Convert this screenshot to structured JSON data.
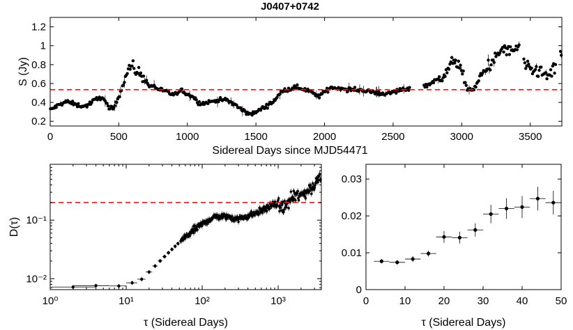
{
  "figure_title": "J0407+0742",
  "colors": {
    "data": "#000000",
    "reference_line": "#e8161c",
    "axis": "#000000"
  },
  "chart_data": [
    {
      "id": "lightcurve",
      "type": "scatter",
      "title": "J0407+0742",
      "xlabel": "Sidereal Days since MJD54471",
      "ylabel": "S (Jy)",
      "xlim": [
        0,
        3730
      ],
      "ylim": [
        0.15,
        1.3
      ],
      "xticks": [
        0,
        500,
        1000,
        1500,
        2000,
        2500,
        3000,
        3500
      ],
      "yticks": [
        0.2,
        0.4,
        0.6,
        0.8,
        1.0,
        1.2
      ],
      "ytick_labels": [
        "0.2",
        "0.4",
        "0.6",
        "0.8",
        "1",
        "1.2"
      ],
      "reference_line": {
        "y": 0.535,
        "style": "dashed"
      },
      "trend_knots_x": [
        0,
        60,
        120,
        200,
        260,
        320,
        380,
        430,
        460,
        500,
        540,
        575,
        600,
        640,
        680,
        720,
        780,
        900,
        960,
        1000,
        1050,
        1100,
        1200,
        1280,
        1350,
        1420,
        1480,
        1550,
        1620,
        1700,
        1800,
        1880,
        1950,
        2000,
        2050,
        2150,
        2250,
        2350,
        2420,
        2480,
        2550,
        2620,
        2720,
        2800,
        2880,
        2940,
        2980,
        3040,
        3090,
        3140,
        3200,
        3260,
        3300,
        3360,
        3420,
        3460,
        3500,
        3560,
        3620,
        3680,
        3730
      ],
      "trend_knots_y": [
        0.32,
        0.37,
        0.41,
        0.37,
        0.36,
        0.42,
        0.46,
        0.34,
        0.33,
        0.46,
        0.62,
        0.78,
        0.77,
        0.72,
        0.67,
        0.58,
        0.55,
        0.48,
        0.52,
        0.49,
        0.45,
        0.38,
        0.42,
        0.43,
        0.37,
        0.3,
        0.28,
        0.34,
        0.4,
        0.53,
        0.56,
        0.53,
        0.46,
        0.51,
        0.56,
        0.54,
        0.53,
        0.51,
        0.49,
        0.5,
        0.53,
        0.55,
        0.57,
        0.62,
        0.7,
        0.85,
        0.78,
        0.55,
        0.53,
        0.68,
        0.8,
        0.88,
        0.98,
        0.93,
        0.98,
        0.78,
        0.74,
        0.72,
        0.68,
        0.74,
        0.94
      ],
      "gaps": [
        [
          2620,
          2720
        ],
        [
          3420,
          3450
        ],
        [
          3690,
          3725
        ]
      ],
      "isolated_points": [
        [
          3720,
          0.94
        ]
      ]
    },
    {
      "id": "structure_function_log",
      "type": "scatter",
      "xscale": "log",
      "yscale": "log",
      "xlabel": "τ (Sidereal Days)",
      "ylabel": "D(τ)",
      "xlim": [
        1,
        3700
      ],
      "ylim": [
        0.0065,
        0.9
      ],
      "xticks": [
        1,
        10,
        100,
        1000
      ],
      "xtick_labels": [
        "10⁰",
        "10¹",
        "10²",
        "10³"
      ],
      "yticks": [
        0.01,
        0.1
      ],
      "ytick_labels": [
        "10⁻²",
        "10⁻¹"
      ],
      "reference_line": {
        "y": 0.2,
        "style": "dashed"
      },
      "trend_knots_tau": [
        2,
        4,
        8,
        12,
        16,
        20,
        30,
        50,
        80,
        120,
        150,
        200,
        300,
        500,
        700,
        900,
        1200,
        1600,
        2000,
        2500,
        3000,
        3500
      ],
      "trend_knots_D": [
        0.0072,
        0.0076,
        0.0075,
        0.0085,
        0.0098,
        0.013,
        0.022,
        0.042,
        0.07,
        0.1,
        0.115,
        0.115,
        0.105,
        0.13,
        0.16,
        0.19,
        0.165,
        0.26,
        0.26,
        0.33,
        0.38,
        0.6
      ]
    },
    {
      "id": "structure_function_zoom",
      "type": "scatter",
      "xlabel": "τ (Sidereal Days)",
      "ylabel": "",
      "xlim": [
        0,
        50
      ],
      "ylim": [
        0,
        0.034
      ],
      "xticks": [
        0,
        10,
        20,
        30,
        40,
        50
      ],
      "yticks": [
        0,
        0.01,
        0.02,
        0.03
      ],
      "ytick_labels": [
        "0",
        "0.01",
        "0.02",
        "0.03"
      ],
      "points": [
        {
          "x": 4,
          "y": 0.0077,
          "xerr": 2,
          "yerr": 0.0006
        },
        {
          "x": 8,
          "y": 0.0074,
          "xerr": 2,
          "yerr": 0.0006
        },
        {
          "x": 12,
          "y": 0.0083,
          "xerr": 2,
          "yerr": 0.0008
        },
        {
          "x": 16,
          "y": 0.0098,
          "xerr": 2,
          "yerr": 0.0008
        },
        {
          "x": 20,
          "y": 0.0143,
          "xerr": 2,
          "yerr": 0.0016
        },
        {
          "x": 24,
          "y": 0.0141,
          "xerr": 2,
          "yerr": 0.0016
        },
        {
          "x": 28,
          "y": 0.0162,
          "xerr": 2,
          "yerr": 0.0018
        },
        {
          "x": 32,
          "y": 0.0205,
          "xerr": 2,
          "yerr": 0.0025
        },
        {
          "x": 36,
          "y": 0.022,
          "xerr": 2,
          "yerr": 0.0028
        },
        {
          "x": 40,
          "y": 0.0224,
          "xerr": 2,
          "yerr": 0.003
        },
        {
          "x": 44,
          "y": 0.0247,
          "xerr": 2,
          "yerr": 0.0032
        },
        {
          "x": 48,
          "y": 0.0236,
          "xerr": 2,
          "yerr": 0.0032
        }
      ]
    }
  ]
}
